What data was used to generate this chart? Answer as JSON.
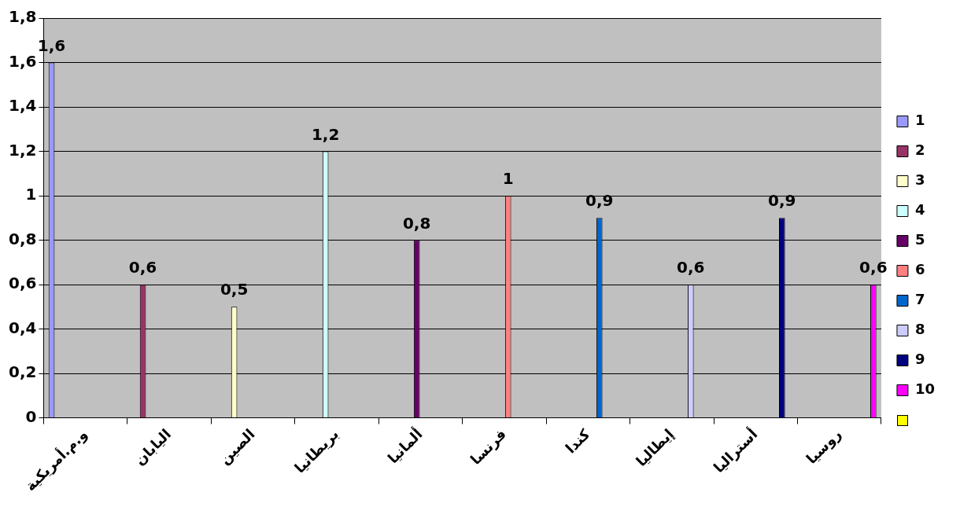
{
  "chart_data": {
    "type": "bar",
    "categories": [
      "و.م.أمريكية",
      "اليابان",
      "الصين",
      "بريطانيا",
      "ألمانيا",
      "فرنسا",
      "كندا",
      "إيطاليا",
      "أستراليا",
      "روسيا"
    ],
    "ylim": [
      0,
      1.8
    ],
    "yticks": [
      0,
      {
        "value": 0.2,
        "label": "0,2"
      },
      {
        "value": 0.4,
        "label": "0,4"
      },
      {
        "value": 0.6,
        "label": "0,6"
      },
      {
        "value": 0.8,
        "label": "0,8"
      },
      1,
      {
        "value": 1.2,
        "label": "1,2"
      },
      {
        "value": 1.4,
        "label": "1,4"
      },
      {
        "value": 1.6,
        "label": "1,6"
      },
      {
        "value": 1.8,
        "label": "1,8"
      }
    ],
    "grid": "y",
    "legend": "right",
    "series": [
      {
        "name": "1",
        "color": "#9999ff",
        "values": [
          1.6,
          null,
          null,
          null,
          null,
          null,
          null,
          null,
          null,
          null
        ],
        "value_labels": [
          "1,6",
          null,
          null,
          null,
          null,
          null,
          null,
          null,
          null,
          null
        ]
      },
      {
        "name": "2",
        "color": "#993366",
        "values": [
          null,
          0.6,
          null,
          null,
          null,
          null,
          null,
          null,
          null,
          null
        ],
        "value_labels": [
          null,
          "0,6",
          null,
          null,
          null,
          null,
          null,
          null,
          null,
          null
        ]
      },
      {
        "name": "3",
        "color": "#ffffcc",
        "values": [
          null,
          null,
          0.5,
          null,
          null,
          null,
          null,
          null,
          null,
          null
        ],
        "value_labels": [
          null,
          null,
          "0,5",
          null,
          null,
          null,
          null,
          null,
          null,
          null
        ]
      },
      {
        "name": "4",
        "color": "#ccffff",
        "values": [
          null,
          null,
          null,
          1.2,
          null,
          null,
          null,
          null,
          null,
          null
        ],
        "value_labels": [
          null,
          null,
          null,
          "1,2",
          null,
          null,
          null,
          null,
          null,
          null
        ]
      },
      {
        "name": "5",
        "color": "#660066",
        "values": [
          null,
          null,
          null,
          null,
          0.8,
          null,
          null,
          null,
          null,
          null
        ],
        "value_labels": [
          null,
          null,
          null,
          null,
          "0,8",
          null,
          null,
          null,
          null,
          null
        ]
      },
      {
        "name": "6",
        "color": "#ff8080",
        "values": [
          null,
          null,
          null,
          null,
          null,
          1,
          null,
          null,
          null,
          null
        ],
        "value_labels": [
          null,
          null,
          null,
          null,
          null,
          "1",
          null,
          null,
          null,
          null
        ]
      },
      {
        "name": "7",
        "color": "#0066cc",
        "values": [
          null,
          null,
          null,
          null,
          null,
          null,
          0.9,
          null,
          null,
          null
        ],
        "value_labels": [
          null,
          null,
          null,
          null,
          null,
          null,
          "0,9",
          null,
          null,
          null
        ]
      },
      {
        "name": "8",
        "color": "#ccccff",
        "values": [
          null,
          null,
          null,
          null,
          null,
          null,
          null,
          0.6,
          null,
          null
        ],
        "value_labels": [
          null,
          null,
          null,
          null,
          null,
          null,
          null,
          "0,6",
          null,
          null
        ]
      },
      {
        "name": "9",
        "color": "#000080",
        "values": [
          null,
          null,
          null,
          null,
          null,
          null,
          null,
          null,
          0.9,
          null
        ],
        "value_labels": [
          null,
          null,
          null,
          null,
          null,
          null,
          null,
          null,
          "0,9",
          null
        ]
      },
      {
        "name": "10",
        "color": "#ff00ff",
        "values": [
          null,
          null,
          null,
          null,
          null,
          null,
          null,
          null,
          null,
          0.6
        ],
        "value_labels": [
          null,
          null,
          null,
          null,
          null,
          null,
          null,
          null,
          null,
          "0,6"
        ]
      }
    ]
  }
}
